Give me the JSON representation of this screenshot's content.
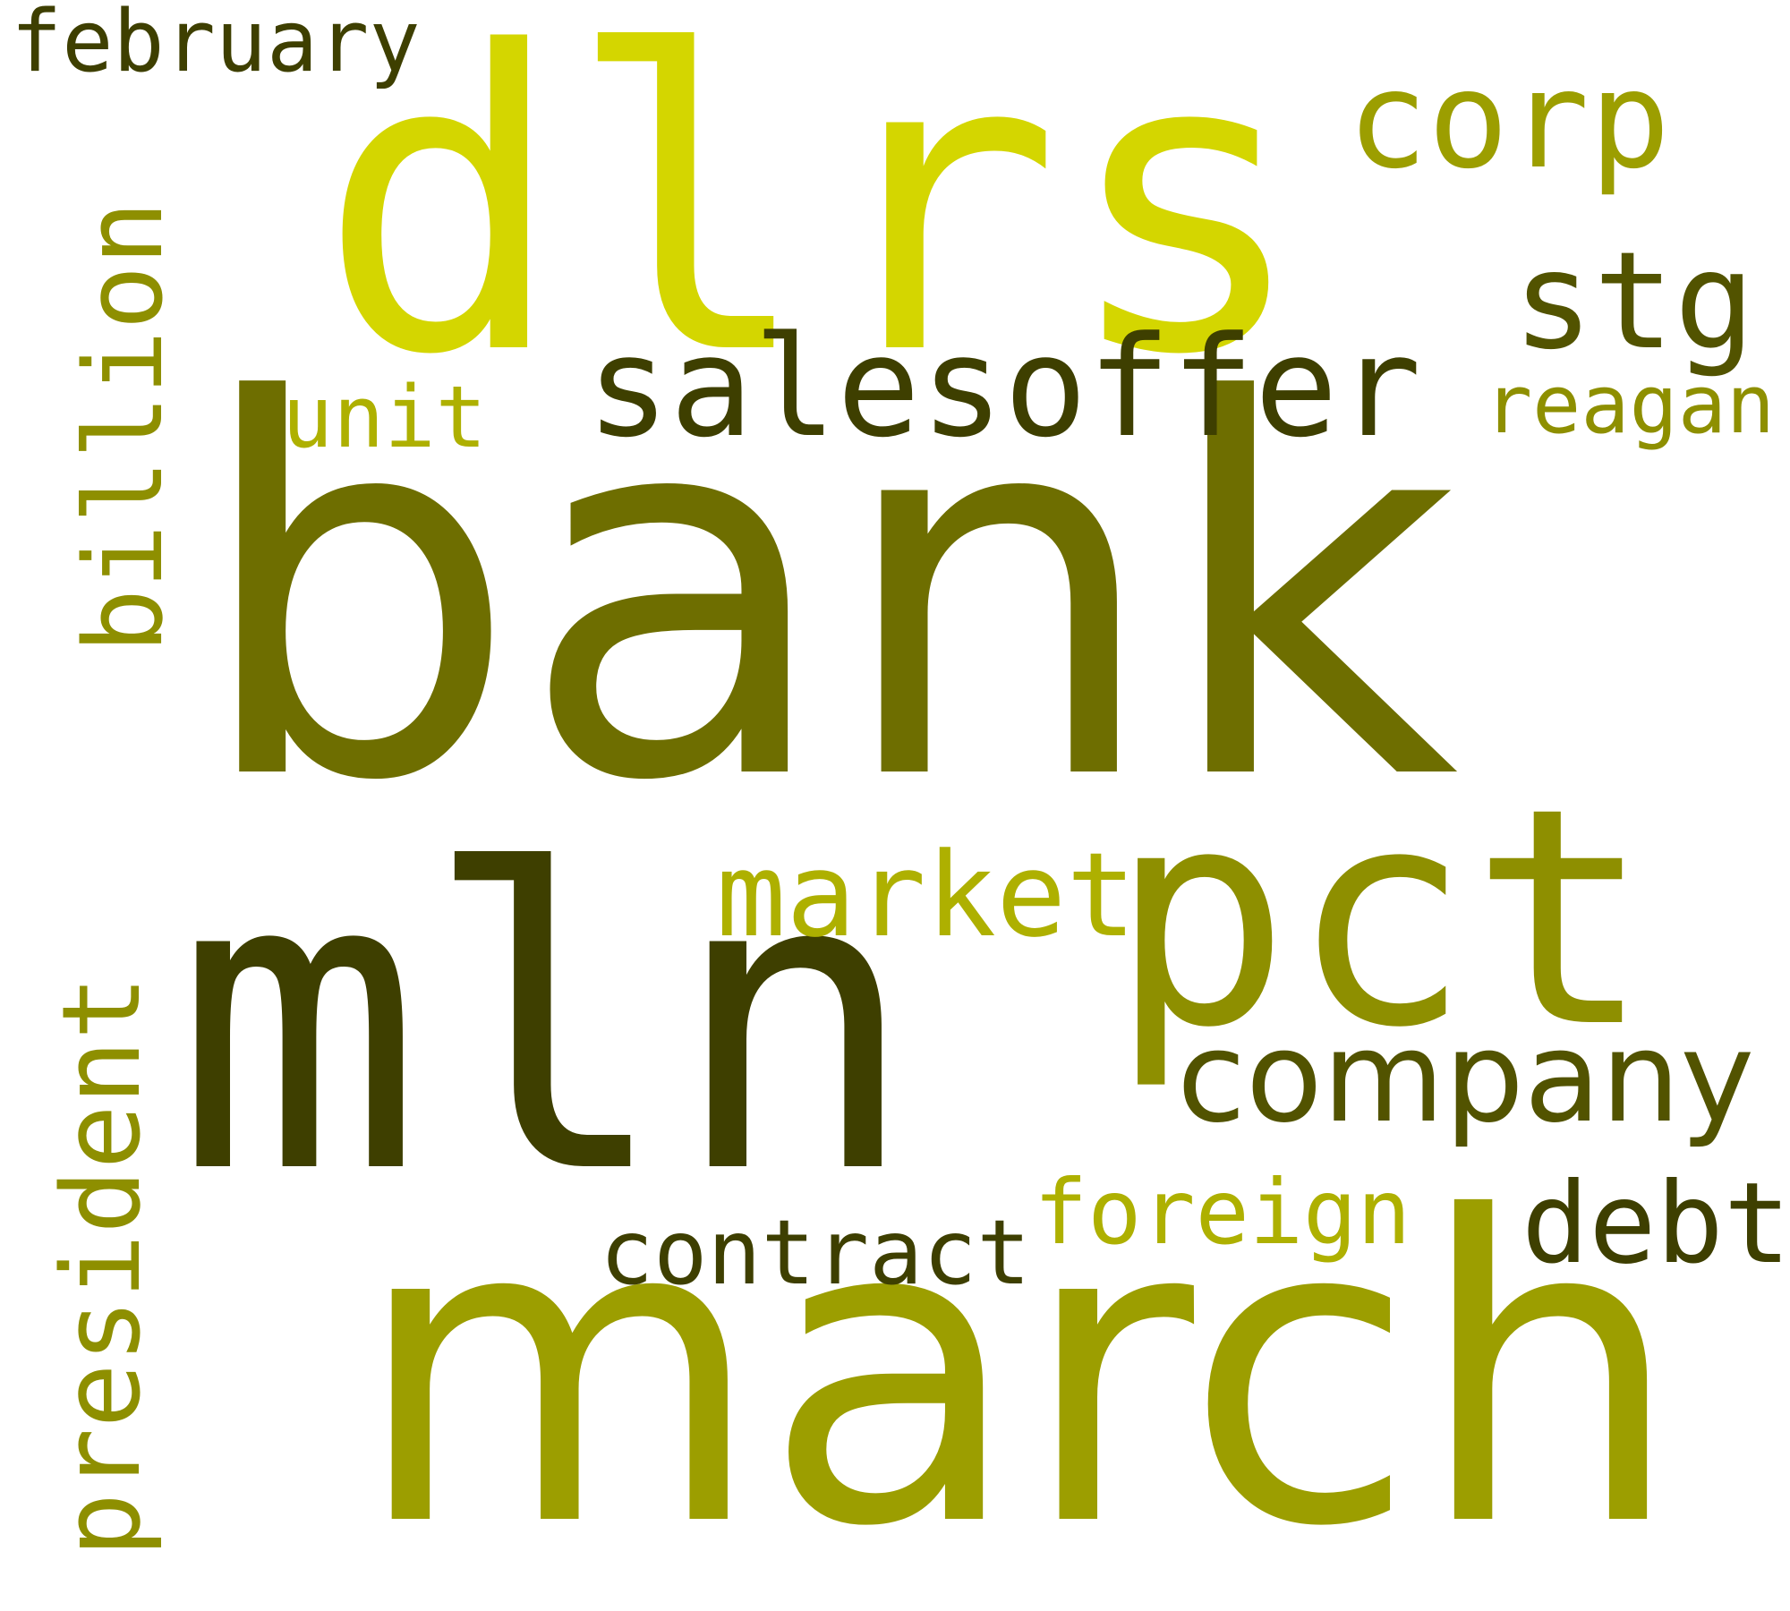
{
  "words": {
    "bank": "bank",
    "mln": "mln",
    "march": "march",
    "dlrs": "dlrs",
    "pct": "pct",
    "billion": "billion",
    "president": "president",
    "salesoffer": "salesoffer",
    "company": "company",
    "corp": "corp",
    "stg": "stg",
    "market": "market",
    "debt": "debt",
    "contract": "contract",
    "foreign": "foreign",
    "february": "february",
    "unit": "unit",
    "reagan": "reagan"
  },
  "colors": {
    "darkest": "#3e3f00",
    "dark": "#525300",
    "olive": "#6e6e00",
    "mid": "#8e8f00",
    "olive_bright": "#9c9e00",
    "light": "#aeb000",
    "lightest": "#d4d600"
  }
}
